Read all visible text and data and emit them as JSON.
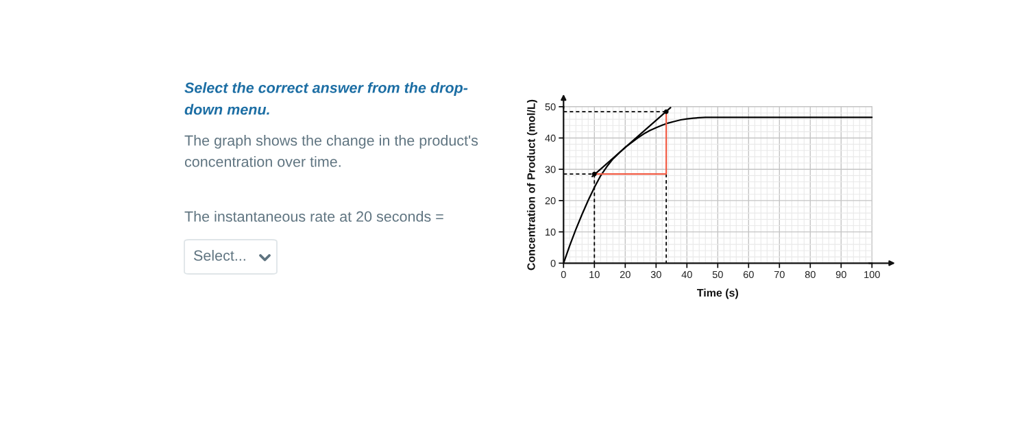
{
  "chart_data": {
    "type": "line",
    "xlabel": "Time (s)",
    "ylabel": "Concentration of Product (mol/L)",
    "xlim": [
      0,
      100
    ],
    "ylim": [
      0,
      50
    ],
    "xticks": [
      0,
      10,
      20,
      30,
      40,
      50,
      60,
      70,
      80,
      90,
      100
    ],
    "yticks": [
      0,
      10,
      20,
      30,
      40,
      50
    ],
    "grid": true,
    "series": [
      {
        "color": "#000000",
        "x": [
          0,
          2,
          4,
          6,
          8,
          10,
          12,
          14,
          16,
          18,
          20,
          22,
          24,
          26,
          28,
          30,
          32,
          34,
          36,
          38,
          40,
          42,
          44,
          46,
          48,
          100
        ],
        "values": [
          0,
          5.6,
          10.8,
          15.6,
          20.1,
          24.2,
          27.9,
          30.8,
          33.3,
          35.2,
          37.0,
          38.5,
          40.0,
          41.3,
          42.4,
          43.3,
          44.1,
          44.8,
          45.3,
          45.8,
          46.1,
          46.3,
          46.5,
          46.6,
          46.6,
          46.6
        ]
      },
      {
        "color": "#000000",
        "x": [
          9.3,
          34.7
        ],
        "values": [
          27.7,
          49.7
        ]
      },
      {
        "color": "#000000",
        "line_style": "dashed",
        "x": [
          0,
          10,
          10
        ],
        "values": [
          28.5,
          28.5,
          0
        ]
      },
      {
        "color": "#000000",
        "line_style": "dashed",
        "x": [
          0,
          33.3
        ],
        "values": [
          48.4,
          48.4
        ]
      },
      {
        "color": "#000000",
        "line_style": "dashed",
        "x": [
          33.3,
          33.3
        ],
        "values": [
          28.5,
          0
        ]
      },
      {
        "color": "#f25c45",
        "x": [
          10,
          33.3,
          33.3
        ],
        "values": [
          28.5,
          28.5,
          48.4
        ]
      },
      {
        "type": "scatter",
        "marker": "circle",
        "color": "#000000",
        "x": [
          10,
          33.3
        ],
        "values": [
          28.5,
          48.4
        ]
      }
    ],
    "annotations": [
      "Select the correct answer from the drop-\ndown menu.",
      "The graph shows the change in the product's\nconcentration over time.",
      "The instantaneous rate at 20 seconds =",
      "Select..."
    ]
  }
}
